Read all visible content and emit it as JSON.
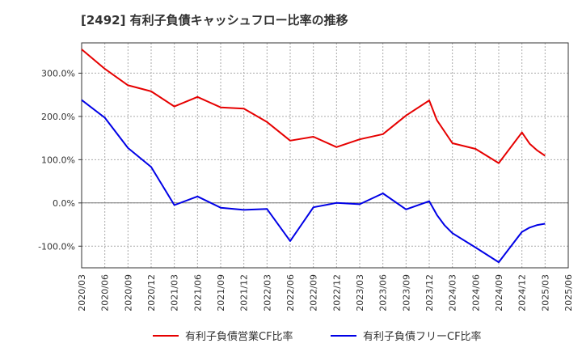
{
  "chart_data": {
    "type": "line",
    "title": "[2492]  有利子負債キャッシュフロー比率の推移",
    "xlabel": "",
    "ylabel": "",
    "x": [
      "2020/03",
      "2020/06",
      "2020/09",
      "2020/12",
      "2021/03",
      "2021/06",
      "2021/09",
      "2021/12",
      "2022/03",
      "2022/06",
      "2022/09",
      "2022/12",
      "2023/03",
      "2023/06",
      "2023/09",
      "2023/12",
      "2024/01",
      "2024/03",
      "2024/06",
      "2024/09",
      "2024/12",
      "2025/01",
      "2025/02",
      "2025/03"
    ],
    "x_ticks": [
      "2020/03",
      "2020/06",
      "2020/09",
      "2020/12",
      "2021/03",
      "2021/06",
      "2021/09",
      "2021/12",
      "2022/03",
      "2022/06",
      "2022/09",
      "2022/12",
      "2023/03",
      "2023/06",
      "2023/09",
      "2023/12",
      "2024/03",
      "2024/06",
      "2024/09",
      "2024/12",
      "2025/03",
      "2025/06"
    ],
    "ylim": [
      -150,
      370
    ],
    "y_ticks": [
      -100,
      0,
      100,
      200,
      300
    ],
    "y_tick_labels": [
      "-100.0%",
      "0.0%",
      "100.0%",
      "200.0%",
      "300.0%"
    ],
    "grid": true,
    "legend_position": "bottom",
    "series": [
      {
        "name": "有利子負債営業CF比率",
        "color": "#e60000",
        "x": [
          "2020/03",
          "2020/06",
          "2020/09",
          "2020/12",
          "2021/03",
          "2021/06",
          "2021/09",
          "2021/12",
          "2022/03",
          "2022/06",
          "2022/09",
          "2022/12",
          "2023/03",
          "2023/06",
          "2023/09",
          "2023/12",
          "2024/01",
          "2024/03",
          "2024/06",
          "2024/09",
          "2024/12",
          "2025/01",
          "2025/02",
          "2025/03"
        ],
        "values": [
          355,
          310,
          272,
          258,
          223,
          245,
          221,
          218,
          187,
          144,
          153,
          129,
          147,
          159,
          202,
          237,
          191,
          138,
          125,
          92,
          163,
          137,
          121,
          109
        ]
      },
      {
        "name": "有利子負債フリーCF比率",
        "color": "#0000e6",
        "x": [
          "2020/03",
          "2020/06",
          "2020/09",
          "2020/12",
          "2021/03",
          "2021/06",
          "2021/09",
          "2021/12",
          "2022/03",
          "2022/06",
          "2022/09",
          "2022/12",
          "2023/03",
          "2023/06",
          "2023/09",
          "2023/12",
          "2024/01",
          "2024/02",
          "2024/03",
          "2024/06",
          "2024/09",
          "2024/12",
          "2025/01",
          "2025/02",
          "2025/03"
        ],
        "values": [
          238,
          197,
          127,
          83,
          -5,
          15,
          -11,
          -16,
          -14,
          -88,
          -10,
          0,
          -3,
          22,
          -15,
          4,
          -28,
          -52,
          -70,
          -103,
          -137,
          -67,
          -57,
          -51,
          -48
        ]
      }
    ]
  }
}
